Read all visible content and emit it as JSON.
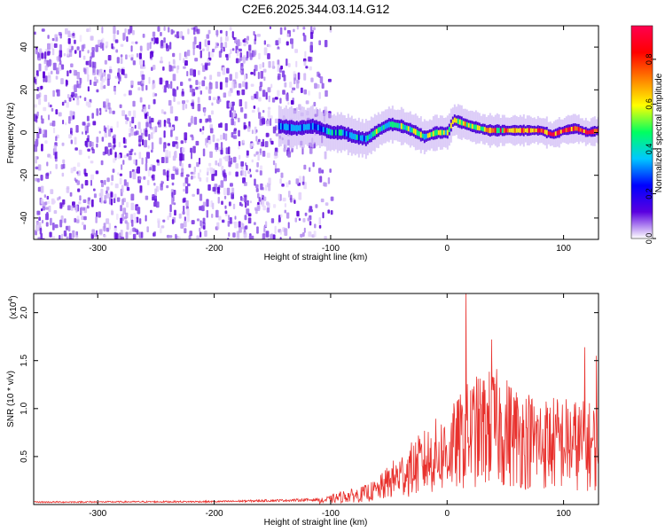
{
  "title": "C2E6.2025.344.03.14.G12",
  "colors": {
    "signal": "#e8302c",
    "axis": "#000000",
    "background": "#ffffff"
  },
  "chart_data": [
    {
      "type": "heatmap",
      "id": "spectrogram",
      "title": "C2E6.2025.344.03.14.G12",
      "xlabel": "Height of straight line (km)",
      "ylabel": "Frequency (Hz)",
      "xlim": [
        -355,
        130
      ],
      "ylim": [
        -50,
        50
      ],
      "xticks": [
        -300,
        -200,
        -100,
        0,
        100
      ],
      "xtick_labels": [
        "-300",
        "-200",
        "-100",
        "0",
        "100"
      ],
      "yticks": [
        -40,
        -20,
        0,
        20,
        40
      ],
      "ytick_labels": [
        "-40",
        "-20",
        "0",
        "20",
        "40"
      ],
      "noise_region_x": [
        -355,
        -100
      ],
      "ridge": {
        "x": [
          -145,
          -130,
          -115,
          -100,
          -90,
          -80,
          -70,
          -60,
          -50,
          -40,
          -30,
          -20,
          -10,
          0,
          5,
          20,
          35,
          50,
          65,
          80,
          90,
          100,
          110,
          120,
          130
        ],
        "y": [
          3,
          2,
          3,
          0,
          0,
          -2,
          -3,
          1,
          4,
          3,
          1,
          -2,
          0,
          0,
          6,
          3,
          1,
          1,
          1,
          1,
          -1,
          1,
          2,
          0,
          1
        ]
      },
      "colorbar": {
        "label": "Normalized spectral amplitude",
        "range": [
          0,
          0.95
        ],
        "ticks": [
          0.0,
          0.2,
          0.4,
          0.6,
          0.8
        ],
        "tick_labels": [
          "0.0",
          "0.2",
          "0.4",
          "0.6",
          "0.8"
        ],
        "colormap": [
          "#ffffff",
          "#5a00e0",
          "#0000ff",
          "#00c8ff",
          "#00ff60",
          "#ffff00",
          "#ff8000",
          "#ff0000",
          "#ff0050"
        ]
      }
    },
    {
      "type": "line",
      "id": "snr",
      "xlabel": "Height of straight line (km)",
      "ylabel": "SNR (10 * v/v)",
      "scale_label": "(x10",
      "scale_exp": "4",
      "scale_close": ")",
      "xlim": [
        -355,
        130
      ],
      "ylim": [
        0,
        22000
      ],
      "xticks": [
        -300,
        -200,
        -100,
        0,
        100
      ],
      "xtick_labels": [
        "-300",
        "-200",
        "-100",
        "0",
        "100"
      ],
      "yticks": [
        5000,
        10000,
        15000,
        20000
      ],
      "ytick_labels": [
        "0.5",
        "1.0",
        "1.5",
        "2.0"
      ],
      "envelope": {
        "x": [
          -355,
          -200,
          -110,
          -100,
          -90,
          -75,
          -60,
          -50,
          -40,
          -30,
          -20,
          -10,
          0,
          10,
          20,
          30,
          40,
          60,
          80,
          100,
          120,
          130
        ],
        "y": [
          250,
          300,
          500,
          800,
          1200,
          1500,
          2200,
          3500,
          4500,
          5500,
          6500,
          7500,
          8000,
          9500,
          11000,
          11500,
          12000,
          10500,
          9500,
          9500,
          9000,
          9000
        ]
      },
      "spikes": [
        {
          "x": 16,
          "y": 22000
        },
        {
          "x": 38,
          "y": 17200
        },
        {
          "x": 118,
          "y": 16400
        },
        {
          "x": 128,
          "y": 15500
        }
      ]
    }
  ]
}
